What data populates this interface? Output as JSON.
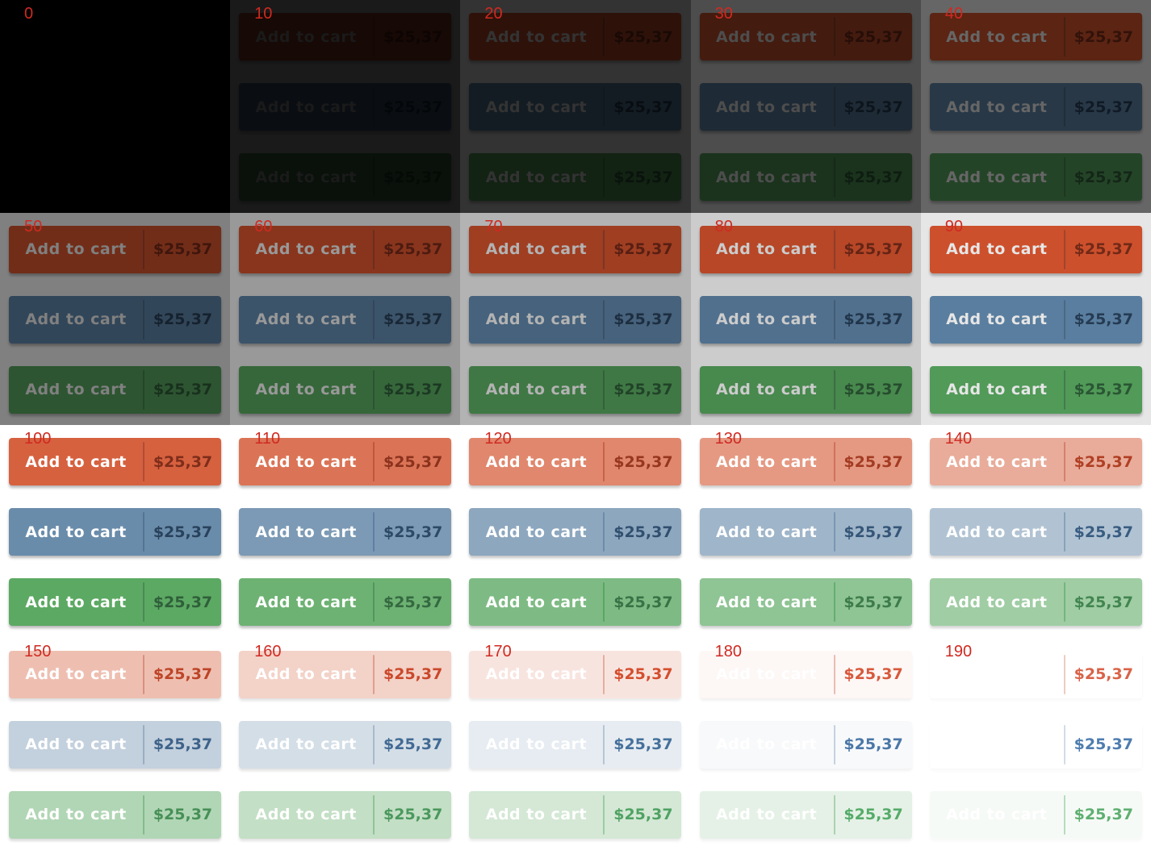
{
  "button": {
    "label": "Add to cart",
    "price": "$25,37"
  },
  "grid": {
    "columns": 5,
    "rows": 4,
    "cells": [
      {
        "label": "0",
        "value": 0
      },
      {
        "label": "10",
        "value": 10
      },
      {
        "label": "20",
        "value": 20
      },
      {
        "label": "30",
        "value": 30
      },
      {
        "label": "40",
        "value": 40
      },
      {
        "label": "50",
        "value": 50
      },
      {
        "label": "60",
        "value": 60
      },
      {
        "label": "70",
        "value": 70
      },
      {
        "label": "80",
        "value": 80
      },
      {
        "label": "90",
        "value": 90
      },
      {
        "label": "100",
        "value": 100
      },
      {
        "label": "110",
        "value": 110
      },
      {
        "label": "120",
        "value": 120
      },
      {
        "label": "130",
        "value": 130
      },
      {
        "label": "140",
        "value": 140
      },
      {
        "label": "150",
        "value": 150
      },
      {
        "label": "160",
        "value": 160
      },
      {
        "label": "170",
        "value": 170
      },
      {
        "label": "180",
        "value": 180
      },
      {
        "label": "190",
        "value": 190
      }
    ]
  },
  "colors": {
    "label_text": "#cf2a21",
    "page_bg_base": "#ffffff",
    "button_text_base": "#ffffff",
    "variants": [
      {
        "name": "orange",
        "bg": "#d6613f",
        "divider": "#b14d33",
        "price": "#7e2d1a"
      },
      {
        "name": "blue",
        "bg": "#6a8cab",
        "divider": "#567492",
        "price": "#29425c"
      },
      {
        "name": "green",
        "bg": "#5ca963",
        "divider": "#4a8a54",
        "price": "#2f5f3a"
      }
    ]
  }
}
